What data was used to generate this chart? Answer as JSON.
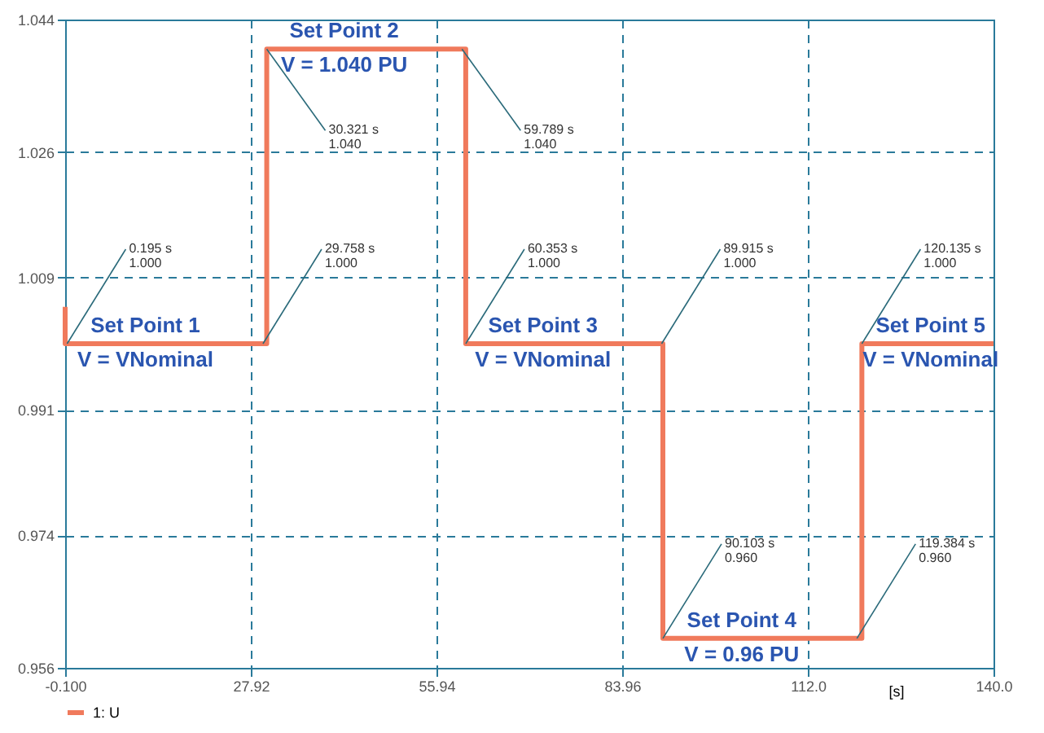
{
  "chart_data": {
    "type": "step",
    "xlabel": "[s]",
    "x": [
      -0.1,
      -0.1,
      0.195,
      29.758,
      30.321,
      59.789,
      60.353,
      89.915,
      90.103,
      119.384,
      120.135,
      140.0
    ],
    "series": [
      {
        "name": "1: U",
        "color": "#f07a5c",
        "values": [
          1.005,
          1.0,
          1.0,
          1.0,
          1.04,
          1.04,
          1.0,
          1.0,
          0.96,
          0.96,
          1.0,
          1.0
        ]
      }
    ],
    "xlim": [
      -0.1,
      140.0
    ],
    "ylim": [
      0.956,
      1.044
    ],
    "xticks": [
      {
        "value": -0.1,
        "label": "-0.100"
      },
      27.92,
      55.94,
      83.96,
      {
        "value": 112.0,
        "label": "112.0"
      },
      {
        "value": 140.0,
        "label": "140.0"
      }
    ],
    "yticks": [
      0.956,
      0.974,
      0.991,
      1.009,
      1.026,
      1.044
    ],
    "grid": true,
    "legend": "bottom left",
    "line_style": "solid",
    "marker": "none",
    "annotations": [
      {
        "text": "0.195 s\n1.000",
        "x": 0.195,
        "y": 1.0
      },
      {
        "text": "29.758 s\n1.000",
        "x": 29.758,
        "y": 1.0
      },
      {
        "text": "30.321 s\n1.040",
        "x": 30.321,
        "y": 1.04
      },
      {
        "text": "59.789 s\n1.040",
        "x": 59.789,
        "y": 1.04
      },
      {
        "text": "60.353 s\n1.000",
        "x": 60.353,
        "y": 1.0
      },
      {
        "text": "89.915 s\n1.000",
        "x": 89.915,
        "y": 1.0
      },
      {
        "text": "90.103 s\n0.960",
        "x": 90.103,
        "y": 0.96
      },
      {
        "text": "119.384 s\n0.960",
        "x": 119.384,
        "y": 0.96
      },
      {
        "text": "120.135 s\n1.000",
        "x": 120.135,
        "y": 1.0
      },
      {
        "text": "Set Point 1",
        "x": 12,
        "y": 1.0
      },
      {
        "text": "V = VNominal",
        "x": 12,
        "y": 1.0
      },
      {
        "text": "Set Point 2",
        "x": 42,
        "y": 1.04
      },
      {
        "text": "V = 1.040 PU",
        "x": 42,
        "y": 1.04
      },
      {
        "text": "Set Point 3",
        "x": 72,
        "y": 1.0
      },
      {
        "text": "V = VNominal",
        "x": 72,
        "y": 1.0
      },
      {
        "text": "Set Point 4",
        "x": 102,
        "y": 0.96
      },
      {
        "text": "V = 0.96 PU",
        "x": 102,
        "y": 0.96
      },
      {
        "text": "Set Point 5",
        "x": 130.5,
        "y": 1.0
      },
      {
        "text": "V = VNominal",
        "x": 130.5,
        "y": 1.0
      }
    ]
  }
}
